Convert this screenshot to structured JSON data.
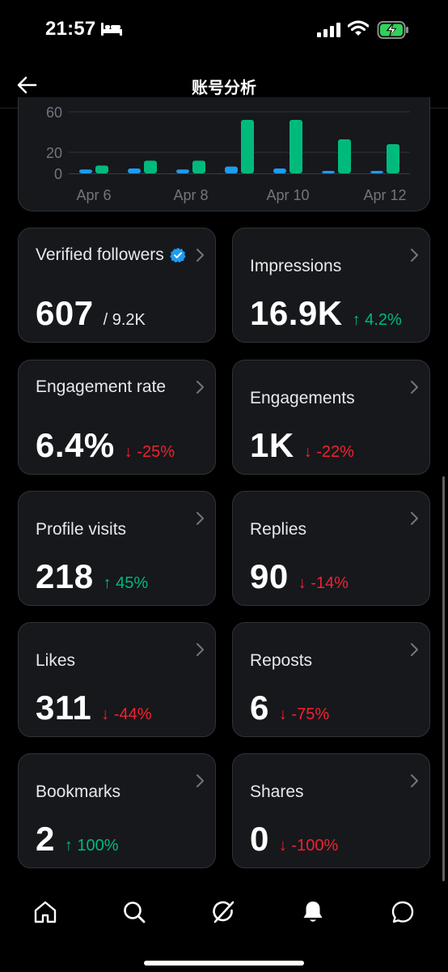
{
  "status_bar": {
    "time": "21:57"
  },
  "header": {
    "title": "账号分析"
  },
  "chart_data": {
    "type": "bar",
    "categories": [
      "Apr 6",
      "Apr 7",
      "Apr 8",
      "Apr 9",
      "Apr 10",
      "Apr 11",
      "Apr 12"
    ],
    "x_tick_labels": [
      "Apr 6",
      "Apr 8",
      "Apr 10",
      "Apr 12"
    ],
    "y_tick_labels": [
      "60",
      "20",
      "0"
    ],
    "ylim": [
      0,
      65
    ],
    "series": [
      {
        "color": "#1d9bf0",
        "values": [
          4,
          5,
          4,
          7,
          5,
          2,
          1
        ]
      },
      {
        "color": "#00ba7c",
        "values": [
          8,
          13,
          13,
          55,
          55,
          35,
          30
        ]
      }
    ]
  },
  "metrics": [
    {
      "label": "Verified followers",
      "value": "607",
      "sub": "/ 9.2K",
      "delta": "",
      "trend": ""
    },
    {
      "label": "Impressions",
      "value": "16.9K",
      "sub": "",
      "delta": "↑ 4.2%",
      "trend": "up"
    },
    {
      "label": "Engagement rate",
      "value": "6.4%",
      "sub": "",
      "delta": "↓ -25%",
      "trend": "down"
    },
    {
      "label": "Engagements",
      "value": "1K",
      "sub": "",
      "delta": "↓ -22%",
      "trend": "down"
    },
    {
      "label": "Profile visits",
      "value": "218",
      "sub": "",
      "delta": "↑ 45%",
      "trend": "up"
    },
    {
      "label": "Replies",
      "value": "90",
      "sub": "",
      "delta": "↓ -14%",
      "trend": "down"
    },
    {
      "label": "Likes",
      "value": "311",
      "sub": "",
      "delta": "↓ -44%",
      "trend": "down"
    },
    {
      "label": "Reposts",
      "value": "6",
      "sub": "",
      "delta": "↓ -75%",
      "trend": "down"
    },
    {
      "label": "Bookmarks",
      "value": "2",
      "sub": "",
      "delta": "↑ 100%",
      "trend": "up"
    },
    {
      "label": "Shares",
      "value": "0",
      "sub": "",
      "delta": "↓ -100%",
      "trend": "down"
    }
  ],
  "tab_bar": {
    "icons": [
      "home-icon",
      "search-icon",
      "grok-icon",
      "notifications-icon",
      "messages-icon"
    ]
  }
}
